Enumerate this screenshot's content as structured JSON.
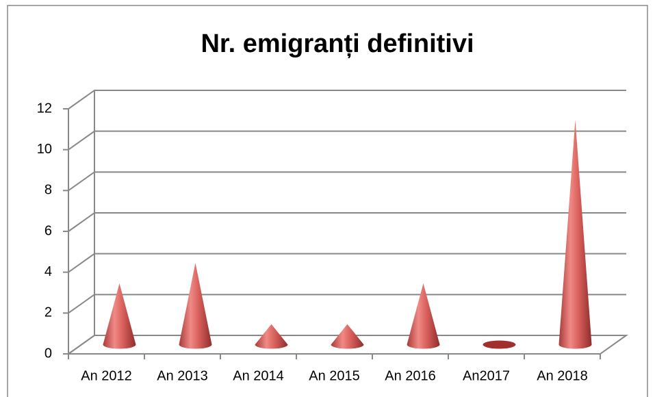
{
  "chart_data": {
    "type": "cone",
    "title": "Nr. emigranți definitivi",
    "categories": [
      "An 2012",
      "An 2013",
      "An 2014",
      "An 2015",
      "An 2016",
      "An2017",
      "An 2018"
    ],
    "values": [
      3,
      4,
      1,
      1,
      3,
      0,
      11
    ],
    "color": "#c0504d",
    "ylim": [
      0,
      12
    ],
    "yticks": [
      0,
      2,
      4,
      6,
      8,
      10,
      12
    ],
    "grid": true
  }
}
